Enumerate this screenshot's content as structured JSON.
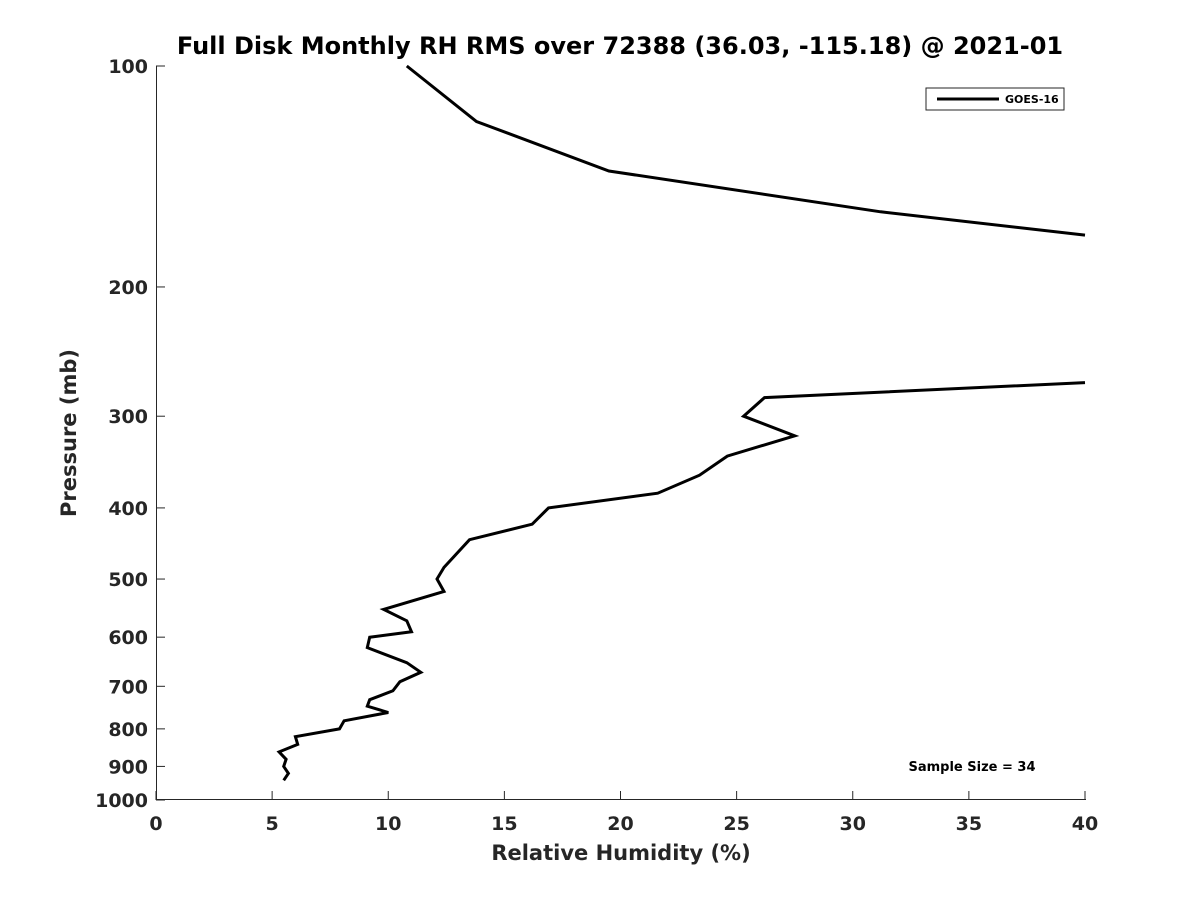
{
  "chart_data": {
    "type": "line",
    "title": "Full Disk Monthly RH RMS over 72388 (36.03, -115.18) @ 2021-01",
    "xlabel": "Relative Humidity (%)",
    "ylabel": "Pressure (mb)",
    "xlim": [
      0,
      40
    ],
    "ylim": [
      1000,
      100
    ],
    "yscale": "log",
    "y_reversed": true,
    "xticks": [
      "0",
      "5",
      "10",
      "15",
      "20",
      "25",
      "30",
      "35",
      "40"
    ],
    "yticks": [
      "100",
      "200",
      "300",
      "400",
      "500",
      "600",
      "700",
      "800",
      "900",
      "1000"
    ],
    "grid": false,
    "legend": {
      "position": "top-right",
      "entries": [
        "GOES-16"
      ]
    },
    "annotation": "Sample Size = 34",
    "line_color": "#000000",
    "series": [
      {
        "name": "GOES-16",
        "segments": [
          [
            {
              "x": 10.8,
              "y": 100
            },
            {
              "x": 13.8,
              "y": 119
            },
            {
              "x": 19.5,
              "y": 139
            },
            {
              "x": 31.2,
              "y": 158
            },
            {
              "x": 40.0,
              "y": 170
            }
          ],
          [
            {
              "x": 40.0,
              "y": 270
            },
            {
              "x": 26.2,
              "y": 283
            },
            {
              "x": 25.3,
              "y": 300
            },
            {
              "x": 27.5,
              "y": 319
            },
            {
              "x": 24.6,
              "y": 340
            },
            {
              "x": 23.4,
              "y": 361
            },
            {
              "x": 21.6,
              "y": 382
            },
            {
              "x": 16.9,
              "y": 400
            },
            {
              "x": 16.2,
              "y": 421
            },
            {
              "x": 13.5,
              "y": 442
            },
            {
              "x": 12.4,
              "y": 482
            },
            {
              "x": 12.1,
              "y": 500
            },
            {
              "x": 12.4,
              "y": 520
            },
            {
              "x": 9.8,
              "y": 550
            },
            {
              "x": 10.8,
              "y": 570
            },
            {
              "x": 11.0,
              "y": 590
            },
            {
              "x": 9.2,
              "y": 600
            },
            {
              "x": 9.1,
              "y": 620
            },
            {
              "x": 10.8,
              "y": 650
            },
            {
              "x": 11.4,
              "y": 670
            },
            {
              "x": 10.5,
              "y": 690
            },
            {
              "x": 10.2,
              "y": 710
            },
            {
              "x": 9.2,
              "y": 730
            },
            {
              "x": 9.1,
              "y": 745
            },
            {
              "x": 10.0,
              "y": 760
            },
            {
              "x": 8.1,
              "y": 780
            },
            {
              "x": 7.9,
              "y": 800
            },
            {
              "x": 6.0,
              "y": 820
            },
            {
              "x": 6.1,
              "y": 840
            },
            {
              "x": 5.3,
              "y": 860
            },
            {
              "x": 5.6,
              "y": 880
            },
            {
              "x": 5.5,
              "y": 900
            },
            {
              "x": 5.7,
              "y": 920
            },
            {
              "x": 5.5,
              "y": 940
            }
          ]
        ]
      }
    ]
  }
}
